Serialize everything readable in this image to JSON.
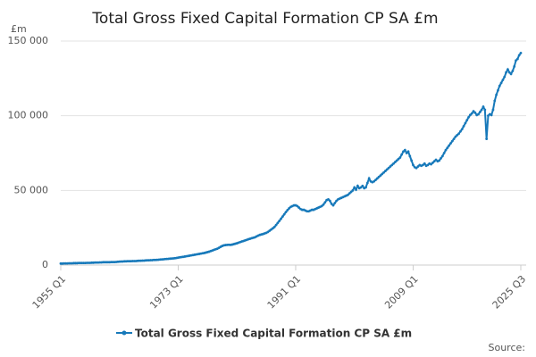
{
  "chart_data": {
    "type": "line",
    "title": "Total Gross Fixed Capital Formation CP SA £m",
    "y_label": "£m",
    "source_label": "Source:",
    "categories": [
      "1955 Q1",
      null,
      null,
      null,
      null,
      null,
      null,
      null,
      null,
      null,
      null,
      null,
      null,
      null,
      null,
      null,
      null,
      null,
      null,
      null,
      null,
      null,
      null,
      null,
      null,
      null,
      null,
      null,
      null,
      null,
      null,
      null,
      null,
      null,
      null,
      null,
      null,
      null,
      null,
      null,
      null,
      null,
      null,
      null,
      null,
      null,
      null,
      null,
      null,
      null,
      null,
      null,
      null,
      null,
      null,
      null,
      null,
      null,
      null,
      null,
      null,
      null,
      null,
      null,
      null,
      null,
      null,
      null,
      null,
      null,
      null,
      null,
      "1973 Q1",
      null,
      null,
      null,
      null,
      null,
      null,
      null,
      null,
      null,
      null,
      null,
      null,
      null,
      null,
      null,
      null,
      null,
      null,
      null,
      null,
      null,
      null,
      null,
      null,
      null,
      null,
      null,
      null,
      null,
      null,
      null,
      null,
      null,
      null,
      null,
      null,
      null,
      null,
      null,
      null,
      null,
      null,
      null,
      null,
      null,
      null,
      null,
      null,
      null,
      null,
      null,
      null,
      null,
      null,
      null,
      null,
      null,
      null,
      null,
      null,
      null,
      null,
      null,
      null,
      null,
      null,
      null,
      null,
      null,
      null,
      null,
      "1991 Q1",
      null,
      null,
      null,
      null,
      null,
      null,
      null,
      null,
      null,
      null,
      null,
      null,
      null,
      null,
      null,
      null,
      null,
      null,
      null,
      null,
      null,
      null,
      null,
      null,
      null,
      null,
      null,
      null,
      null,
      null,
      null,
      null,
      null,
      null,
      null,
      null,
      null,
      null,
      null,
      null,
      null,
      null,
      null,
      null,
      null,
      null,
      null,
      null,
      null,
      null,
      null,
      null,
      null,
      null,
      null,
      null,
      null,
      null,
      null,
      null,
      null,
      null,
      null,
      null,
      null,
      null,
      null,
      null,
      null,
      null,
      null,
      "2009 Q1",
      null,
      null,
      null,
      null,
      null,
      null,
      null,
      null,
      null,
      null,
      null,
      null,
      null,
      null,
      null,
      null,
      null,
      null,
      null,
      null,
      null,
      null,
      null,
      null,
      null,
      null,
      null,
      null,
      null,
      null,
      null,
      null,
      null,
      null,
      null,
      null,
      null,
      null,
      null,
      null,
      null,
      null,
      null,
      null,
      null,
      null,
      null,
      null,
      null,
      null,
      null,
      null,
      null,
      null,
      null,
      null,
      null,
      null,
      null,
      null,
      null,
      null,
      null,
      null,
      null,
      "2025 Q3"
    ],
    "series": [
      {
        "name": "Total Gross Fixed Capital Formation CP SA £m",
        "color": "#1779ba",
        "values": [
          1000,
          1000,
          1100,
          1100,
          1100,
          1200,
          1200,
          1200,
          1300,
          1300,
          1300,
          1400,
          1400,
          1400,
          1400,
          1400,
          1500,
          1500,
          1500,
          1600,
          1600,
          1700,
          1700,
          1700,
          1800,
          1800,
          1900,
          1900,
          1900,
          1900,
          1900,
          2000,
          2000,
          2000,
          2100,
          2200,
          2300,
          2400,
          2400,
          2500,
          2500,
          2600,
          2600,
          2600,
          2700,
          2700,
          2700,
          2800,
          2900,
          2900,
          3000,
          3000,
          3100,
          3200,
          3200,
          3300,
          3300,
          3400,
          3400,
          3500,
          3600,
          3700,
          3800,
          3900,
          4000,
          4100,
          4200,
          4300,
          4400,
          4500,
          4600,
          4800,
          5000,
          5200,
          5400,
          5500,
          5700,
          5900,
          6100,
          6300,
          6500,
          6700,
          6900,
          7100,
          7300,
          7500,
          7700,
          7900,
          8100,
          8400,
          8700,
          9000,
          9400,
          9800,
          10200,
          10600,
          11000,
          11600,
          12200,
          12800,
          13200,
          13400,
          13500,
          13600,
          13500,
          13700,
          14000,
          14300,
          14600,
          15000,
          15400,
          15800,
          16100,
          16500,
          16900,
          17300,
          17600,
          18000,
          18300,
          18600,
          19200,
          19700,
          20200,
          20500,
          20800,
          21200,
          21600,
          22200,
          23000,
          23800,
          24600,
          25500,
          26800,
          28200,
          29600,
          31000,
          32500,
          34000,
          35500,
          36800,
          38000,
          39000,
          39500,
          40000,
          40000,
          39500,
          38500,
          37500,
          37000,
          37000,
          36500,
          36000,
          36000,
          36500,
          37000,
          37000,
          37500,
          38000,
          38500,
          39000,
          39500,
          40500,
          42000,
          43500,
          44000,
          43000,
          41000,
          40000,
          41500,
          43000,
          44000,
          44500,
          45000,
          45500,
          46000,
          46500,
          47000,
          48000,
          49000,
          50000,
          52000,
          50500,
          53000,
          51500,
          52000,
          53000,
          51500,
          52000,
          55000,
          58000,
          56000,
          55500,
          56000,
          57000,
          58000,
          59000,
          60000,
          61000,
          62000,
          63000,
          64000,
          65000,
          66000,
          67000,
          68000,
          69000,
          70000,
          71000,
          72000,
          74000,
          76000,
          77000,
          75000,
          76000,
          73000,
          70000,
          67000,
          65500,
          65000,
          66000,
          67000,
          66500,
          67000,
          68000,
          66500,
          67000,
          68000,
          67500,
          68500,
          69500,
          70500,
          69500,
          70000,
          71500,
          73000,
          75000,
          77000,
          78500,
          80000,
          81500,
          83000,
          84500,
          86000,
          87000,
          88000,
          89500,
          91000,
          93000,
          95000,
          97000,
          99000,
          100500,
          101500,
          103000,
          102000,
          100500,
          101000,
          102500,
          104000,
          106000,
          104000,
          84500,
          100000,
          101000,
          100500,
          104000,
          110000,
          114000,
          117000,
          120000,
          122000,
          124000,
          126000,
          129000,
          131000,
          129000,
          128000,
          130000,
          133000,
          137000,
          138000,
          140500,
          142000
        ]
      }
    ],
    "ylim": [
      0,
      150000
    ],
    "yticks": [
      0,
      {
        "value": 50000,
        "label": "50 000"
      },
      {
        "value": 100000,
        "label": "100 000"
      },
      {
        "value": 150000,
        "label": "150 000"
      }
    ],
    "grid": true
  }
}
